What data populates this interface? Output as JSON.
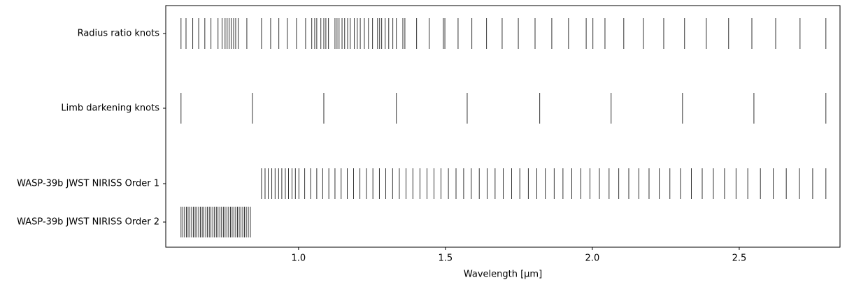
{
  "chart_data": {
    "type": "eventplot",
    "xlabel": "Wavelength [μm]",
    "xlim": [
      0.548,
      2.843
    ],
    "xticks": [
      {
        "value": 1,
        "label": "1.0"
      },
      1.5,
      {
        "value": 2,
        "label": "2.0"
      },
      2.5
    ],
    "series": [
      {
        "name": "Radius ratio knots",
        "color": "#000000",
        "values": [
          0.6,
          0.617,
          0.64,
          0.66,
          0.681,
          0.702,
          0.726,
          0.74,
          0.75,
          0.757,
          0.764,
          0.771,
          0.779,
          0.786,
          0.795,
          0.824,
          0.874,
          0.905,
          0.933,
          0.962,
          0.993,
          1.024,
          1.045,
          1.055,
          1.062,
          1.076,
          1.086,
          1.093,
          1.102,
          1.124,
          1.131,
          1.138,
          1.148,
          1.157,
          1.167,
          1.176,
          1.19,
          1.2,
          1.21,
          1.224,
          1.238,
          1.252,
          1.269,
          1.276,
          1.283,
          1.295,
          1.307,
          1.321,
          1.333,
          1.355,
          1.362,
          1.402,
          1.445,
          1.493,
          1.498,
          1.543,
          1.59,
          1.64,
          1.693,
          1.748,
          1.805,
          1.862,
          1.919,
          1.979,
          2.002,
          2.043,
          2.107,
          2.174,
          2.243,
          2.314,
          2.388,
          2.464,
          2.543,
          2.624,
          2.707,
          2.795
        ]
      },
      {
        "name": "Limb darkening knots",
        "color": "#000000",
        "values": [
          0.6,
          0.843,
          1.086,
          1.333,
          1.574,
          1.821,
          2.064,
          2.307,
          2.55,
          2.795
        ]
      },
      {
        "name": "WASP-39b JWST NIRISS Order 1",
        "color": "#000000",
        "values": [
          0.874,
          0.886,
          0.897,
          0.909,
          0.92,
          0.932,
          0.943,
          0.955,
          0.966,
          0.978,
          0.989,
          1.001,
          1.021,
          1.041,
          1.062,
          1.082,
          1.103,
          1.124,
          1.145,
          1.166,
          1.187,
          1.209,
          1.231,
          1.253,
          1.275,
          1.297,
          1.32,
          1.343,
          1.366,
          1.389,
          1.413,
          1.437,
          1.461,
          1.485,
          1.51,
          1.536,
          1.562,
          1.588,
          1.615,
          1.642,
          1.669,
          1.697,
          1.725,
          1.753,
          1.782,
          1.811,
          1.84,
          1.87,
          1.9,
          1.93,
          1.961,
          1.992,
          2.024,
          2.057,
          2.09,
          2.124,
          2.158,
          2.193,
          2.228,
          2.264,
          2.3,
          2.337,
          2.374,
          2.412,
          2.45,
          2.489,
          2.529,
          2.572,
          2.616,
          2.66,
          2.705,
          2.75,
          2.795
        ]
      },
      {
        "name": "WASP-39b JWST NIRISS Order 2",
        "color": "#000000",
        "values": [
          0.6,
          0.606,
          0.612,
          0.618,
          0.624,
          0.63,
          0.636,
          0.642,
          0.648,
          0.654,
          0.66,
          0.666,
          0.672,
          0.678,
          0.684,
          0.69,
          0.696,
          0.702,
          0.708,
          0.714,
          0.72,
          0.726,
          0.732,
          0.738,
          0.744,
          0.75,
          0.756,
          0.762,
          0.768,
          0.774,
          0.78,
          0.786,
          0.792,
          0.798,
          0.804,
          0.81,
          0.816,
          0.822,
          0.829,
          0.836
        ]
      }
    ]
  }
}
